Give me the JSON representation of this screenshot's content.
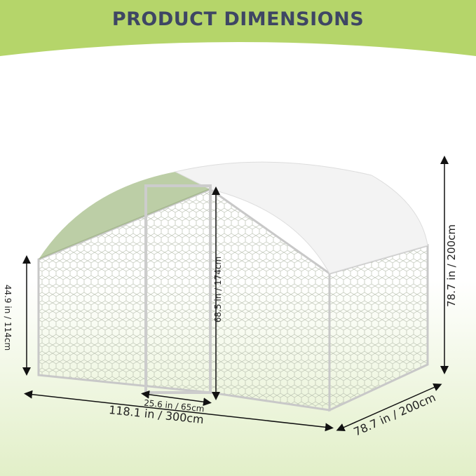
{
  "header": {
    "title": "PRODUCT DIMENSIONS"
  },
  "colors": {
    "banner": "#b5d56a",
    "title": "#3e4664",
    "ground": "#e6f1cf",
    "cover": "#f3f3f3",
    "frame": "#c8c8c8"
  },
  "dimensions": {
    "side_height": "44.9 in / 114cm",
    "door_height": "68.5 in / 174cm",
    "door_width": "25.6 in / 65cm",
    "length": "118.1 in / 300cm",
    "width": "78.7 in / 200cm",
    "total_height": "78.7 in / 200cm"
  }
}
